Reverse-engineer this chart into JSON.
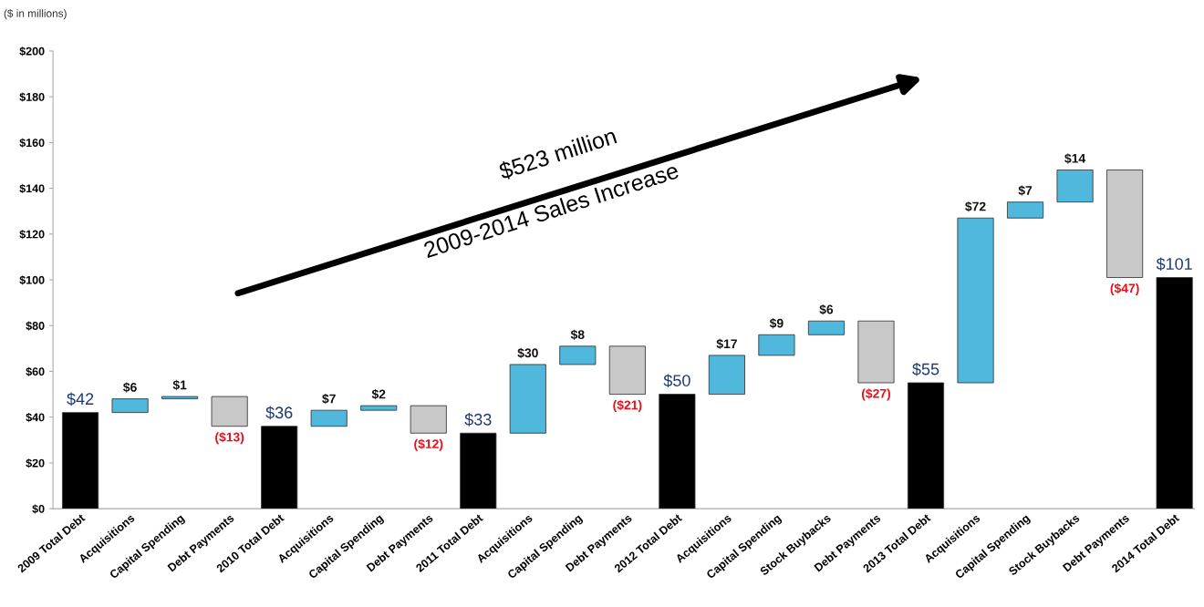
{
  "chart_data": {
    "type": "bar",
    "categories": [
      "2009 Total Debt",
      "Acquisitions",
      "Capital Spending",
      "Debt Payments",
      "2010 Total Debt",
      "Acquisitions",
      "Capital Spending",
      "Debt Payments",
      "2011 Total Debt",
      "Acquisitions",
      "Capital Spending",
      "Debt Payments",
      "2012 Total Debt",
      "Acquisitions",
      "Capital Spending",
      "Stock Buybacks",
      "Debt Payments",
      "2013 Total Debt",
      "Acquisitions",
      "Capital Spending",
      "Stock Buybacks",
      "Debt Payments",
      "2014 Total Debt"
    ],
    "values": [
      42,
      6,
      1,
      -13,
      36,
      7,
      2,
      -12,
      33,
      30,
      8,
      -21,
      50,
      17,
      9,
      6,
      -27,
      55,
      72,
      7,
      14,
      -47,
      101
    ],
    "base": [
      0,
      42,
      48,
      49,
      0,
      36,
      43,
      45,
      0,
      33,
      63,
      71,
      0,
      50,
      67,
      76,
      82,
      0,
      55,
      127,
      134,
      148,
      0
    ],
    "colors": [
      "#000000",
      "#4fb8dc",
      "#4fb8dc",
      "#c8c8c8",
      "#000000",
      "#4fb8dc",
      "#4fb8dc",
      "#c8c8c8",
      "#000000",
      "#4fb8dc",
      "#4fb8dc",
      "#c8c8c8",
      "#000000",
      "#4fb8dc",
      "#4fb8dc",
      "#4fb8dc",
      "#c8c8c8",
      "#000000",
      "#4fb8dc",
      "#4fb8dc",
      "#4fb8dc",
      "#c8c8c8",
      "#000000"
    ],
    "value_labels": [
      "$42",
      "$6",
      "$1",
      "($13)",
      "$36",
      "$7",
      "$2",
      "($12)",
      "$33",
      "$30",
      "$8",
      "($21)",
      "$50",
      "$17",
      "$9",
      "$6",
      "($27)",
      "$55",
      "$72",
      "$7",
      "$14",
      "($47)",
      "$101"
    ],
    "ylim": [
      0,
      200
    ],
    "yticks": [
      {
        "value": 0,
        "label": "$0"
      },
      {
        "value": 20,
        "label": "$20"
      },
      {
        "value": 40,
        "label": "$40"
      },
      {
        "value": 60,
        "label": "$60"
      },
      {
        "value": 80,
        "label": "$80"
      },
      {
        "value": 100,
        "label": "$100"
      },
      {
        "value": 120,
        "label": "$120"
      },
      {
        "value": 140,
        "label": "$140"
      },
      {
        "value": 160,
        "label": "$160"
      },
      {
        "value": 180,
        "label": "$180"
      },
      {
        "value": 200,
        "label": "$200"
      }
    ],
    "annotations": [
      "($ in millions)",
      "$523 million",
      "2009-2014 Sales Increase"
    ],
    "grid": false,
    "legend": false
  }
}
